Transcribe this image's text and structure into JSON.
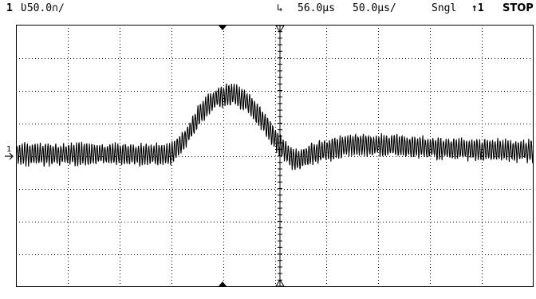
{
  "status": {
    "channel_number": "1",
    "channel_scale": "Ʋ50.0∩∕",
    "trigger_marker": "↳",
    "time_delay": "56.0µs",
    "time_scale": "50.0µs/",
    "acquisition_mode": "Sngl",
    "trigger_source": "↑1",
    "run_state": "STOP"
  },
  "channel_marker_label": "1",
  "colors": {
    "trace": "#000000",
    "grid": "#000000",
    "background": "#ffffff"
  },
  "chart_data": {
    "type": "line",
    "title": "",
    "xlabel": "",
    "ylabel": "",
    "x_divisions": 10,
    "y_divisions": 8,
    "xlim": [
      0,
      10
    ],
    "ylim": [
      -4,
      4
    ],
    "grid": true,
    "series": [
      {
        "x": [
          0,
          2.5,
          3.0,
          3.3,
          3.6,
          3.9,
          4.2,
          4.5,
          4.8,
          5.1,
          5.4,
          5.8,
          6.5,
          7.5,
          8.5,
          10
        ],
        "y": [
          0.05,
          0.05,
          0.05,
          0.6,
          1.4,
          1.8,
          1.9,
          1.6,
          1.0,
          0.3,
          -0.15,
          0.1,
          0.35,
          0.3,
          0.2,
          0.15
        ]
      }
    ],
    "noise_amplitude_divisions": 0.3,
    "noise_period_divisions": 0.05
  }
}
